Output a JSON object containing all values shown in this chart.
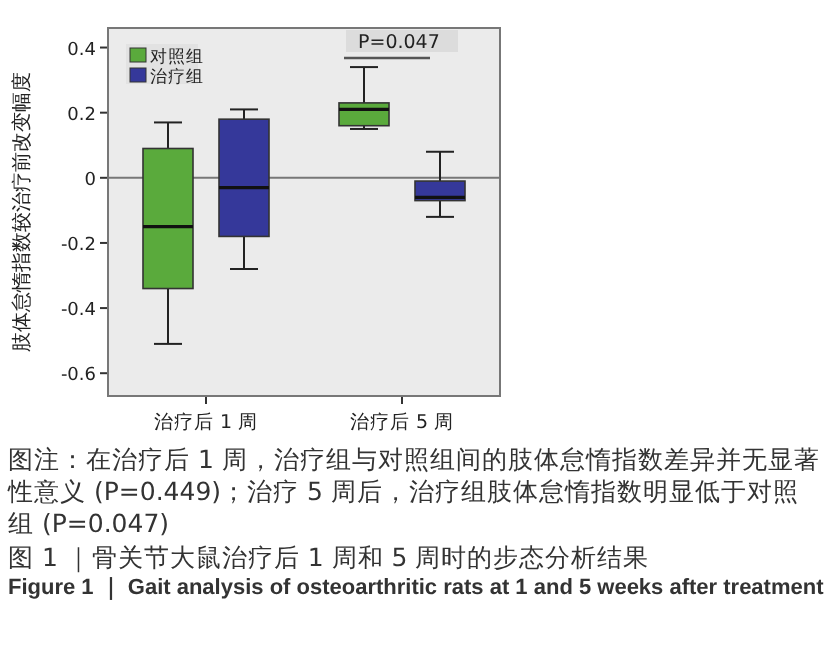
{
  "chart_data": {
    "type": "box",
    "ylabel": "肢体怠惰指数较治疗前改变幅度",
    "categories": [
      "治疗后 1 周",
      "治疗后 5 周"
    ],
    "series": [
      {
        "name": "对照组",
        "color": "#5aaa3c",
        "boxes": [
          {
            "low": -0.51,
            "q1": -0.34,
            "median": -0.15,
            "q3": 0.09,
            "high": 0.17
          },
          {
            "low": 0.15,
            "q1": 0.16,
            "median": 0.21,
            "q3": 0.23,
            "high": 0.34
          }
        ]
      },
      {
        "name": "治疗组",
        "color": "#35389a",
        "boxes": [
          {
            "low": -0.28,
            "q1": -0.18,
            "median": -0.03,
            "q3": 0.18,
            "high": 0.21
          },
          {
            "low": -0.12,
            "q1": -0.07,
            "median": -0.06,
            "q3": -0.01,
            "high": 0.08
          }
        ]
      }
    ],
    "ylim": [
      -0.67,
      0.46
    ],
    "yticks": [
      -0.6,
      -0.4,
      -0.2,
      0,
      0.2,
      0.4
    ],
    "ref_lines": [
      {
        "axis": "y",
        "value": 0,
        "color": "#777777"
      }
    ],
    "legend": "top left",
    "grid": false,
    "annotations": [
      "P=0.047",
      "图注：在治疗后 1 周，治疗组与对照组间的肢体怠惰指数差异并无显著性意义 (P=0.449)；治疗 5 周后，治疗组肢体怠惰指数明显低于对照组 (P=0.047)",
      "图 1 ｜骨关节大鼠治疗后 1 周和 5 周时的步态分析结果",
      "Figure 1 ｜ Gait analysis of osteoarthritic rats at 1 and 5 weeks after treatment"
    ]
  }
}
